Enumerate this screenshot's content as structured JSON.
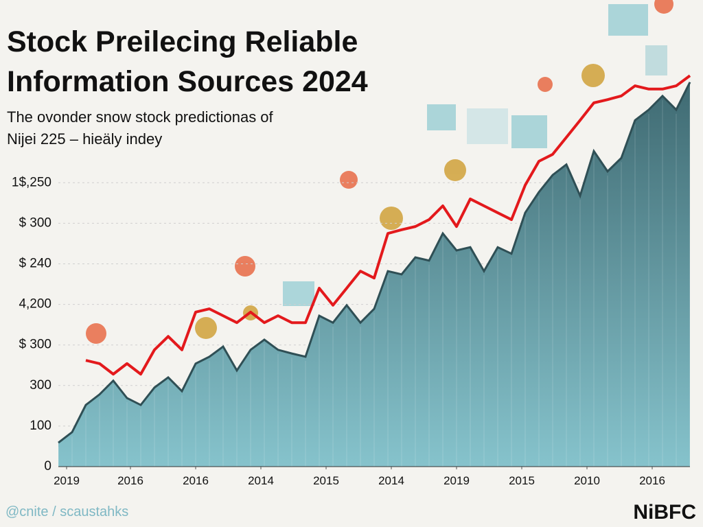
{
  "chart_data": {
    "type": "area",
    "title": [
      "Stock Preilecing Reliable",
      "Information Sources 2024"
    ],
    "subtitle": [
      "The ovonder snow stock predictionas of",
      "Nijei 225 – hieäly indey"
    ],
    "footer": "@cnite / scaustahks",
    "logo": "NiBFC",
    "xlim": [
      0,
      46
    ],
    "x": [
      0,
      1,
      2,
      3,
      4,
      5,
      6,
      7,
      8,
      9,
      10,
      11,
      12,
      13,
      14,
      15,
      16,
      17,
      18,
      19,
      20,
      21,
      22,
      23,
      24,
      25,
      26,
      27,
      28,
      29,
      30,
      31,
      32,
      33,
      34,
      35,
      36,
      37,
      38,
      39,
      40,
      41,
      42,
      43,
      44,
      45,
      46
    ],
    "xticks": [
      {
        "value": 0.6,
        "label": "2019"
      },
      {
        "value": 5.25,
        "label": "2016"
      },
      {
        "value": 10,
        "label": "2016"
      },
      {
        "value": 14.75,
        "label": "2014"
      },
      {
        "value": 19.5,
        "label": "2015"
      },
      {
        "value": 24.25,
        "label": "2014"
      },
      {
        "value": 29,
        "label": "2019"
      },
      {
        "value": 33.75,
        "label": "2015"
      },
      {
        "value": 38.5,
        "label": "2010"
      },
      {
        "value": 43.25,
        "label": "2016"
      }
    ],
    "ylim": [
      0,
      1000
    ],
    "yticks": [
      0,
      100,
      {
        "value": 200,
        "label": "300"
      },
      {
        "value": 300,
        "label": "$ 300"
      },
      {
        "value": 400,
        "label": "4,200"
      },
      {
        "value": 500,
        "label": "$ 240"
      },
      {
        "value": 600,
        "label": "$ 300"
      },
      {
        "value": 700,
        "label": "1$,250"
      }
    ],
    "grid": true,
    "series": [
      {
        "kind": "area",
        "color": "#4f7d85",
        "values": [
          59,
          85,
          152,
          178,
          212,
          169,
          152,
          195,
          220,
          186,
          254,
          271,
          296,
          237,
          288,
          313,
          288,
          279,
          271,
          372,
          355,
          398,
          355,
          389,
          482,
          474,
          516,
          508,
          575,
          533,
          541,
          482,
          541,
          525,
          626,
          677,
          719,
          745,
          668,
          778,
          728,
          761,
          854,
          880,
          914,
          880,
          948
        ]
      },
      {
        "kind": "line",
        "color": "#e3191c",
        "values": [
          null,
          null,
          262,
          254,
          228,
          254,
          228,
          288,
          321,
          288,
          381,
          389,
          372,
          355,
          381,
          355,
          372,
          355,
          355,
          440,
          398,
          440,
          482,
          465,
          575,
          584,
          592,
          609,
          643,
          592,
          660,
          643,
          626,
          609,
          694,
          753,
          770,
          812,
          854,
          897,
          905,
          914,
          939,
          931,
          931,
          939,
          964
        ]
      }
    ]
  }
}
